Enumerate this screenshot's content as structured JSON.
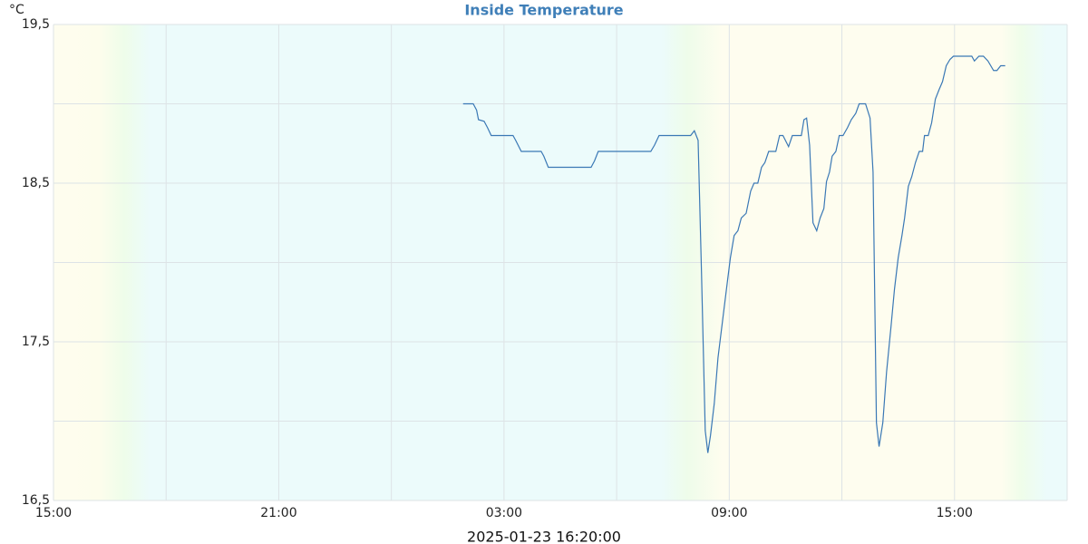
{
  "chart_data": {
    "type": "line",
    "title": "Inside Temperature",
    "unit": "°C",
    "footer": "2025-01-23 16:20:00",
    "color": "#3a78b5",
    "xlim": [
      0,
      27
    ],
    "xticks": [
      {
        "value": 0,
        "label": "15:00"
      },
      {
        "value": 6,
        "label": "21:00"
      },
      {
        "value": 12,
        "label": "03:00"
      },
      {
        "value": 18,
        "label": "09:00"
      },
      {
        "value": 24,
        "label": "15:00"
      }
    ],
    "xgrid": [
      0,
      3,
      6,
      9,
      12,
      15,
      18,
      21,
      24,
      27
    ],
    "ylim": [
      16.5,
      19.5
    ],
    "yticks": [
      {
        "value": 16.5,
        "label": "16,5"
      },
      {
        "value": 17.5,
        "label": "17,5"
      },
      {
        "value": 18.5,
        "label": "18,5"
      },
      {
        "value": 19.5,
        "label": "19,5"
      }
    ],
    "ygrid": [
      16.5,
      17,
      17.5,
      18,
      18.5,
      19,
      19.5
    ],
    "x": [
      10.91,
      11.18,
      11.27,
      11.32,
      11.47,
      11.56,
      11.66,
      12.24,
      12.31,
      12.46,
      12.99,
      13.06,
      13.18,
      14.32,
      14.41,
      14.51,
      15.91,
      16.01,
      16.13,
      16.97,
      17.07,
      17.17,
      17.26,
      17.36,
      17.43,
      17.5,
      17.6,
      17.7,
      17.82,
      17.94,
      18.03,
      18.13,
      18.23,
      18.32,
      18.45,
      18.57,
      18.66,
      18.76,
      18.86,
      18.95,
      19.05,
      19.24,
      19.34,
      19.43,
      19.58,
      19.68,
      19.92,
      19.99,
      20.06,
      20.14,
      20.23,
      20.33,
      20.42,
      20.52,
      20.59,
      20.67,
      20.74,
      20.84,
      20.93,
      21.03,
      21.15,
      21.25,
      21.37,
      21.46,
      21.63,
      21.75,
      21.83,
      21.92,
      21.99,
      22.09,
      22.19,
      22.31,
      22.4,
      22.5,
      22.6,
      22.67,
      22.77,
      22.86,
      22.96,
      23.06,
      23.15,
      23.2,
      23.3,
      23.39,
      23.49,
      23.59,
      23.68,
      23.78,
      23.88,
      23.97,
      24.46,
      24.53,
      24.65,
      24.77,
      24.89,
      25.04,
      25.13,
      25.23,
      25.35
    ],
    "values": [
      19.0,
      19.0,
      18.96,
      18.9,
      18.89,
      18.85,
      18.8,
      18.8,
      18.77,
      18.7,
      18.7,
      18.67,
      18.6,
      18.6,
      18.64,
      18.7,
      18.7,
      18.74,
      18.8,
      18.8,
      18.83,
      18.77,
      17.94,
      16.94,
      16.8,
      16.91,
      17.11,
      17.4,
      17.63,
      17.86,
      18.03,
      18.17,
      18.2,
      18.28,
      18.31,
      18.45,
      18.5,
      18.5,
      18.6,
      18.63,
      18.7,
      18.7,
      18.8,
      18.8,
      18.73,
      18.8,
      18.8,
      18.9,
      18.91,
      18.74,
      18.25,
      18.2,
      18.28,
      18.34,
      18.51,
      18.57,
      18.67,
      18.7,
      18.8,
      18.8,
      18.85,
      18.9,
      18.94,
      19.0,
      19.0,
      18.91,
      18.57,
      16.99,
      16.84,
      16.99,
      17.31,
      17.6,
      17.83,
      18.03,
      18.17,
      18.28,
      18.48,
      18.54,
      18.63,
      18.7,
      18.7,
      18.8,
      18.8,
      18.88,
      19.03,
      19.09,
      19.14,
      19.24,
      19.28,
      19.3,
      19.3,
      19.27,
      19.3,
      19.3,
      19.27,
      19.21,
      19.21,
      19.24,
      19.24
    ]
  }
}
